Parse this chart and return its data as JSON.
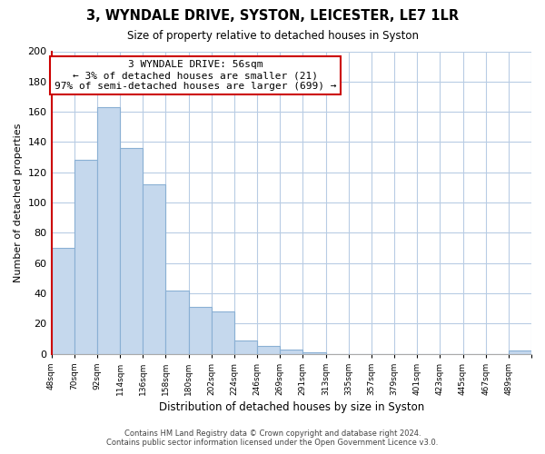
{
  "title": "3, WYNDALE DRIVE, SYSTON, LEICESTER, LE7 1LR",
  "subtitle": "Size of property relative to detached houses in Syston",
  "xlabel": "Distribution of detached houses by size in Syston",
  "ylabel": "Number of detached properties",
  "bar_labels": [
    "48sqm",
    "70sqm",
    "92sqm",
    "114sqm",
    "136sqm",
    "158sqm",
    "180sqm",
    "202sqm",
    "224sqm",
    "246sqm",
    "269sqm",
    "291sqm",
    "313sqm",
    "335sqm",
    "357sqm",
    "379sqm",
    "401sqm",
    "423sqm",
    "445sqm",
    "467sqm",
    "489sqm"
  ],
  "bar_values": [
    70,
    128,
    163,
    136,
    112,
    42,
    31,
    28,
    9,
    5,
    3,
    1,
    0,
    0,
    0,
    0,
    0,
    0,
    0,
    0,
    2
  ],
  "bar_color": "#c5d8ed",
  "bar_edge_color": "#8ab0d4",
  "highlight_color": "#cc0000",
  "ylim": [
    0,
    200
  ],
  "yticks": [
    0,
    20,
    40,
    60,
    80,
    100,
    120,
    140,
    160,
    180,
    200
  ],
  "annotation_title": "3 WYNDALE DRIVE: 56sqm",
  "annotation_line1": "← 3% of detached houses are smaller (21)",
  "annotation_line2": "97% of semi-detached houses are larger (699) →",
  "annotation_box_facecolor": "#ffffff",
  "annotation_box_edgecolor": "#cc0000",
  "footer_line1": "Contains HM Land Registry data © Crown copyright and database right 2024.",
  "footer_line2": "Contains public sector information licensed under the Open Government Licence v3.0.",
  "background_color": "#ffffff",
  "grid_color": "#b8cce4"
}
